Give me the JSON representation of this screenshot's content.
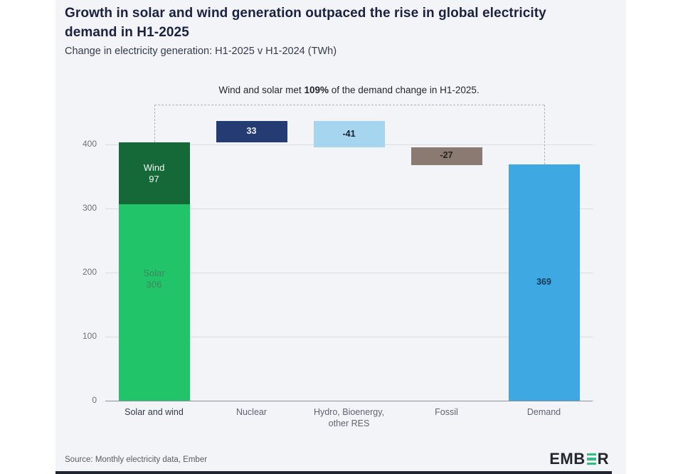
{
  "header": {
    "title": "Growth in solar and wind generation outpaced the rise in global electricity demand in H1-2025",
    "subtitle": "Change in electricity generation: H1-2025 v H1-2024 (TWh)"
  },
  "annotation": {
    "prefix": "Wind and solar met ",
    "highlight": "109%",
    "suffix": " of the demand change in H1-2025."
  },
  "footer": {
    "source": "Source: Monthly electricity data, Ember",
    "logo_part1": "EMB",
    "logo_part2": "R"
  },
  "colors": {
    "card_background": "#f3f4f7",
    "title_text": "#1b2140",
    "solar_green": "#21c468",
    "wind_dark_green": "#156939",
    "nuclear_navy": "#253c72",
    "hydro_light_blue": "#a5d5ef",
    "fossil_taupe": "#8b7a72",
    "demand_blue": "#3da8e2",
    "logo_green": "#2fbf7f",
    "gridline": "#d8dbe2",
    "axis_line": "#8a8f99"
  },
  "chart_data": {
    "type": "bar",
    "subtype": "waterfall",
    "title": "Change in electricity generation: H1-2025 v H1-2024 (TWh)",
    "xlabel": "",
    "ylabel": "TWh",
    "ylim": [
      0,
      462
    ],
    "yticks": [
      0,
      100,
      200,
      300,
      400
    ],
    "grid": true,
    "categories": [
      "Solar and wind",
      "Nuclear",
      "Hydro, Bioenergy, other RES",
      "Fossil",
      "Demand"
    ],
    "bars": [
      {
        "category_lines": [
          "Solar and wind"
        ],
        "emphasis": true,
        "segments": [
          {
            "name": "solar",
            "value": 306,
            "from": 0,
            "to": 306,
            "color": "#21c468",
            "label_lines": [
              "Solar",
              "306"
            ],
            "label_color": "#418763",
            "label_at_value": 190
          },
          {
            "name": "wind",
            "value": 97,
            "from": 306,
            "to": 403,
            "color": "#156939",
            "label_lines": [
              "Wind",
              "97"
            ],
            "label_color": "#f4f8f5"
          }
        ]
      },
      {
        "category_lines": [
          "Nuclear"
        ],
        "emphasis": false,
        "segments": [
          {
            "name": "nuclear",
            "value": 33,
            "from": 403,
            "to": 436,
            "color": "#253c72",
            "label_lines": [
              "33"
            ],
            "label_color": "#eef1f6"
          }
        ]
      },
      {
        "category_lines": [
          "Hydro, Bioenergy,",
          "other RES"
        ],
        "emphasis": false,
        "segments": [
          {
            "name": "hydro-bioenergy-other-res",
            "value": -41,
            "from": 436,
            "to": 395,
            "color": "#a5d5ef",
            "label_lines": [
              "-41"
            ],
            "label_color": "#15202e"
          }
        ]
      },
      {
        "category_lines": [
          "Fossil"
        ],
        "emphasis": false,
        "segments": [
          {
            "name": "fossil",
            "value": -27,
            "from": 395,
            "to": 368,
            "color": "#8b7a72",
            "label_lines": [
              "-27"
            ],
            "label_color": "#26221f"
          }
        ]
      },
      {
        "category_lines": [
          "Demand"
        ],
        "emphasis": false,
        "segments": [
          {
            "name": "demand",
            "value": 369,
            "from": 0,
            "to": 369,
            "color": "#3da8e2",
            "label_lines": [
              "369"
            ],
            "label_color": "#173a57"
          }
        ]
      }
    ],
    "bracket": {
      "from_bar": 0,
      "to_bar": 4
    }
  }
}
